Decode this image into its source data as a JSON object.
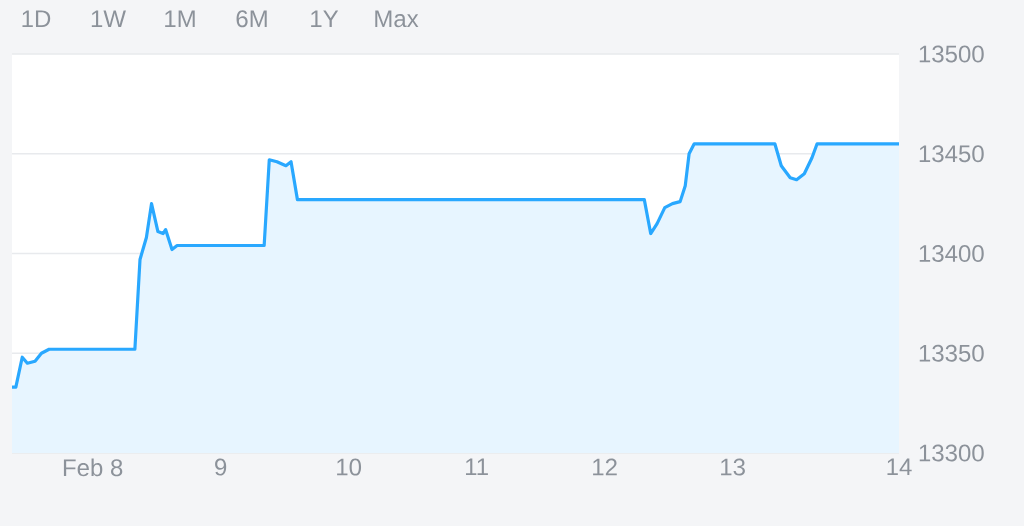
{
  "chart_data": {
    "type": "area",
    "annotations": [
      "1D",
      "1W",
      "1M",
      "6M",
      "1Y",
      "Max"
    ],
    "x": [
      7.37,
      7.4,
      7.45,
      7.49,
      7.55,
      7.6,
      7.66,
      8.33,
      8.37,
      8.42,
      8.46,
      8.51,
      8.55,
      8.57,
      8.62,
      8.66,
      9.34,
      9.38,
      9.44,
      9.51,
      9.55,
      9.6,
      12.31,
      12.36,
      12.41,
      12.47,
      12.53,
      12.59,
      12.63,
      12.66,
      12.7,
      13.33,
      13.38,
      13.45,
      13.5,
      13.56,
      13.62,
      13.66,
      14.3
    ],
    "series": [
      {
        "color": "#29a8ff",
        "values": [
          13333,
          13333,
          13348,
          13345,
          13346,
          13350,
          13352,
          13352,
          13397,
          13408,
          13425,
          13411,
          13410,
          13412,
          13402,
          13404,
          13404,
          13447,
          13446,
          13444,
          13446,
          13427,
          13427,
          13410,
          13415,
          13423,
          13425,
          13426,
          13434,
          13450,
          13455,
          13455,
          13444,
          13438,
          13437,
          13440,
          13448,
          13455,
          13455
        ]
      }
    ],
    "xlim": [
      7.37,
      14.3
    ],
    "xticks": [
      {
        "value": 8,
        "label": "Feb 8"
      },
      9,
      10,
      11,
      12,
      13,
      {
        "value": 14.3,
        "label": "14"
      }
    ],
    "ylim": [
      13300,
      13500
    ],
    "yticks": [
      13300,
      13350,
      13400,
      13450,
      13500
    ],
    "grid": "y"
  }
}
